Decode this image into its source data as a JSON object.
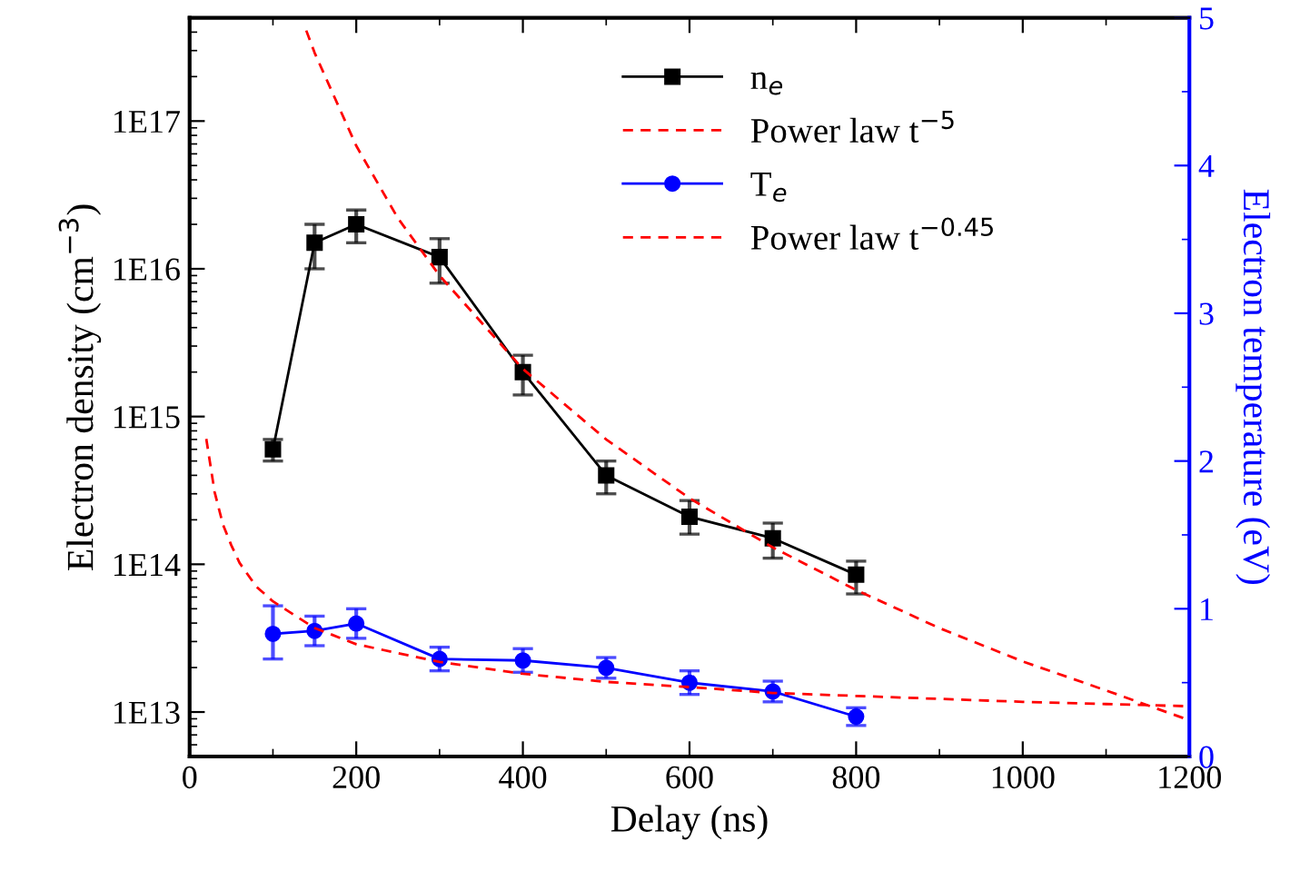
{
  "chart_data": {
    "type": "line",
    "xlabel": "Delay (ns)",
    "ylabel": "Electron density (cm$^{−3}$)",
    "y2label": "Electron temperature (eV)",
    "xlim": [
      0,
      1200
    ],
    "xticks": [
      0,
      200,
      400,
      600,
      800,
      1000,
      1200
    ],
    "ylim": [
      5000000000000.0,
      5e+17
    ],
    "yticks": [
      {
        "value": 10000000000000.0,
        "label": "1E13"
      },
      {
        "value": 100000000000000.0,
        "label": "1E14"
      },
      {
        "value": 1000000000000000.0,
        "label": "1E15"
      },
      {
        "value": 1e+16,
        "label": "1E16"
      },
      {
        "value": 1e+17,
        "label": "1E17"
      }
    ],
    "y2lim": [
      0,
      5
    ],
    "y2ticks": [
      0,
      1,
      2,
      3,
      4,
      5
    ],
    "log": "y",
    "grid": false,
    "legend": "top",
    "series": [
      {
        "name": "n$_{e}$",
        "color": "#000000",
        "marker": "square",
        "line_style": "solid",
        "x": [
          100,
          150,
          200,
          300,
          400,
          500,
          600,
          700,
          800
        ],
        "values": [
          600000000000000.0,
          1.5e+16,
          2e+16,
          1.2e+16,
          2000000000000000.0,
          400000000000000.0,
          210000000000000.0,
          150000000000000.0,
          85000000000000.0
        ],
        "errors": [
          [
            500000000000000.0,
            700000000000000.0
          ],
          [
            1e+16,
            2e+16
          ],
          [
            1.5e+16,
            2.5e+16
          ],
          [
            8000000000000000.0,
            1.6e+16
          ],
          [
            1400000000000000.0,
            2600000000000000.0
          ],
          [
            300000000000000.0,
            500000000000000.0
          ],
          [
            160000000000000.0,
            270000000000000.0
          ],
          [
            110000000000000.0,
            190000000000000.0
          ],
          [
            63000000000000.0,
            105000000000000.0
          ]
        ]
      },
      {
        "name": "Power law t$^{−5}$",
        "color": "#ff0000",
        "marker": "none",
        "line_style": "dashed",
        "x": [
          140,
          150,
          200,
          250,
          300,
          400,
          500,
          600,
          700,
          800,
          900,
          1000,
          1100,
          1200
        ],
        "values": [
          4.1e+17,
          2.9e+17,
          6.8e+16,
          2.2e+16,
          9000000000000000.0,
          2100000000000000.0,
          700000000000000.0,
          280000000000000.0,
          130000000000000.0,
          67000000000000.0,
          37000000000000.0,
          22000000000000.0,
          14000000000000.0,
          8800000000000.0
        ]
      },
      {
        "name": "T$_{e}$",
        "color": "#0000ff",
        "marker": "circle",
        "line_style": "solid",
        "axis": "y2",
        "x": [
          100,
          150,
          200,
          300,
          400,
          500,
          600,
          700,
          800
        ],
        "values": [
          0.83,
          0.85,
          0.9,
          0.66,
          0.65,
          0.6,
          0.5,
          0.44,
          0.27
        ],
        "errors": [
          [
            0.66,
            1.02
          ],
          0.1,
          0.1,
          0.08,
          0.08,
          0.07,
          0.08,
          0.07,
          0.06
        ]
      },
      {
        "name": "Power law t$^{−0.45}$",
        "color": "#ff0000",
        "marker": "none",
        "line_style": "dashed",
        "axis": "y2",
        "x": [
          20,
          30,
          40,
          50,
          60,
          80,
          100,
          150,
          200,
          300,
          400,
          500,
          600,
          700,
          800,
          900,
          1000,
          1100,
          1200
        ],
        "values": [
          2.15,
          1.79,
          1.57,
          1.43,
          1.31,
          1.15,
          1.05,
          0.87,
          0.76,
          0.64,
          0.56,
          0.505,
          0.47,
          0.43,
          0.41,
          0.39,
          0.37,
          0.355,
          0.34
        ]
      }
    ]
  }
}
